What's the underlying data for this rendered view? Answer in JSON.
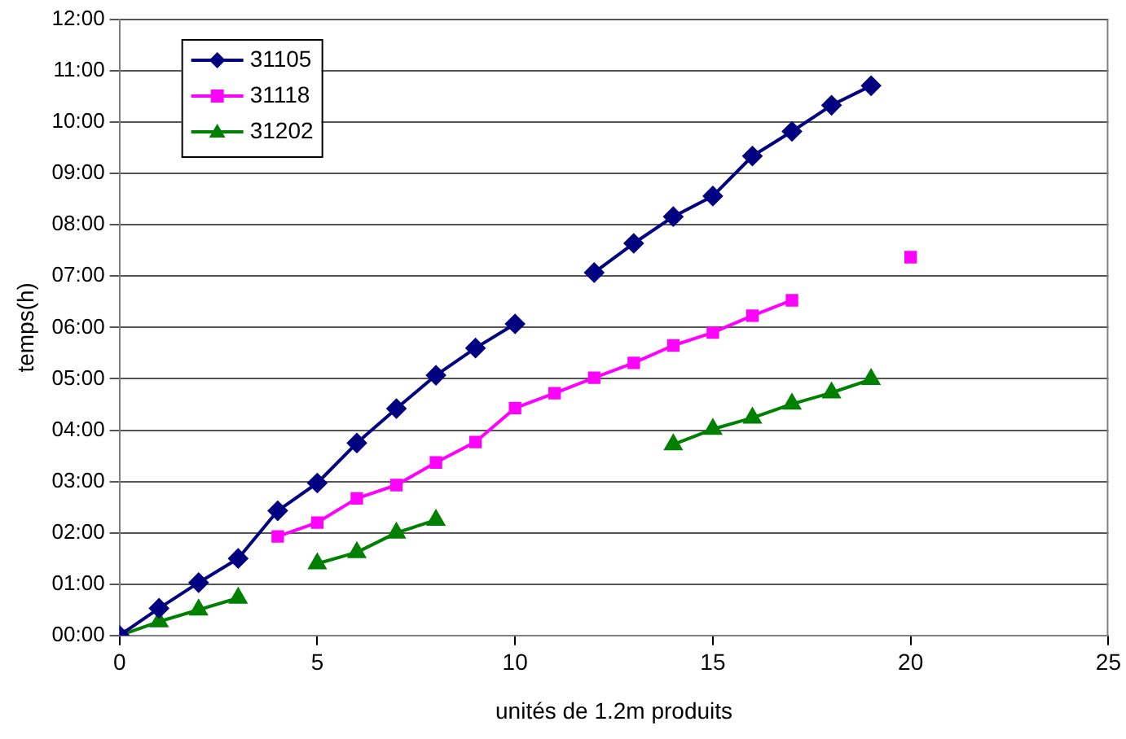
{
  "chart_data": {
    "type": "line",
    "xlabel": "unités de 1.2m produits",
    "ylabel": "temps(h)",
    "x": [
      0,
      1,
      2,
      3,
      4,
      5,
      6,
      7,
      8,
      9,
      10,
      11,
      12,
      13,
      14,
      15,
      16,
      17,
      18,
      19,
      20
    ],
    "series": [
      {
        "name": "31105",
        "color": "#000080",
        "marker": "diamond",
        "values": [
          0,
          0.53,
          1.03,
          1.5,
          2.43,
          2.97,
          3.75,
          4.42,
          5.07,
          5.6,
          6.07,
          null,
          7.07,
          7.64,
          8.16,
          8.56,
          9.34,
          9.82,
          10.33,
          10.71,
          null
        ]
      },
      {
        "name": "31118",
        "color": "#ff00ff",
        "marker": "square",
        "values": [
          0,
          null,
          null,
          null,
          1.93,
          2.2,
          2.67,
          2.93,
          3.37,
          3.77,
          4.43,
          4.72,
          5.02,
          5.31,
          5.65,
          5.9,
          6.23,
          6.53,
          null,
          null,
          7.37
        ]
      },
      {
        "name": "31202",
        "color": "#008000",
        "marker": "triangle",
        "values": [
          0,
          0.27,
          0.5,
          0.73,
          null,
          1.4,
          1.62,
          2.0,
          2.25,
          null,
          null,
          null,
          null,
          null,
          3.72,
          4.02,
          4.24,
          4.51,
          4.73,
          4.99,
          null
        ]
      }
    ],
    "xlim": [
      0,
      25
    ],
    "xticks": [
      0,
      5,
      10,
      15,
      20,
      25
    ],
    "ylim": [
      0,
      12
    ],
    "yticks": [
      {
        "value": 0,
        "label": "00:00"
      },
      {
        "value": 1,
        "label": "01:00"
      },
      {
        "value": 2,
        "label": "02:00"
      },
      {
        "value": 3,
        "label": "03:00"
      },
      {
        "value": 4,
        "label": "04:00"
      },
      {
        "value": 5,
        "label": "05:00"
      },
      {
        "value": 6,
        "label": "06:00"
      },
      {
        "value": 7,
        "label": "07:00"
      },
      {
        "value": 8,
        "label": "08:00"
      },
      {
        "value": 9,
        "label": "09:00"
      },
      {
        "value": 10,
        "label": "10:00"
      },
      {
        "value": 11,
        "label": "11:00"
      },
      {
        "value": 12,
        "label": "12:00"
      }
    ],
    "grid": "y",
    "legend": "top left",
    "line_style": "solid"
  }
}
